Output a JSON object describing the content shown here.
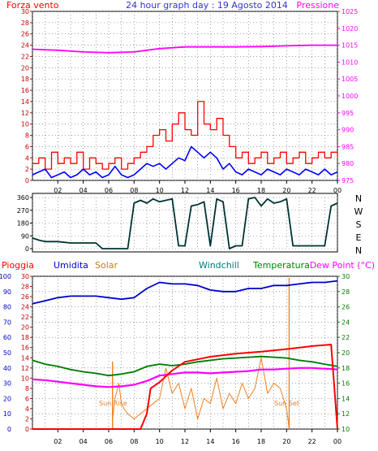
{
  "colors": {
    "wind": "#ff0000",
    "gust": "#ff0000",
    "avg": "#0000ff",
    "pressure": "#ff00ff",
    "dir": "#003333",
    "rain": "#ff0000",
    "hum": "#0000cc",
    "solar": "#f08020",
    "windchill": "#007777",
    "temp": "#008000",
    "dew": "#ff00ff",
    "grid": "#666666"
  },
  "header": {
    "wind_label": "Forza vento",
    "title": "24 hour graph day : 19 Agosto 2014",
    "pressure_label": "Pressione"
  },
  "legend": {
    "rain": "Pioggia",
    "hum": "Umidita",
    "solar": "Solar",
    "windchill": "Windchill",
    "temp": "Temperatura",
    "dew": "Dew Point (°C)"
  },
  "annotations": {
    "sunrise": "Sun Rise",
    "sunset": "Sun Set"
  },
  "chart_data": [
    {
      "type": "line",
      "title": "24 hour graph day : 19 Agosto 2014",
      "x_ticks": [
        "02",
        "04",
        "06",
        "08",
        "10",
        "12",
        "14",
        "16",
        "18",
        "20",
        "22",
        "00"
      ],
      "y_left": {
        "label": "Forza vento",
        "range": [
          0,
          30
        ],
        "ticks": [
          "30",
          "28",
          "26",
          "24",
          "22",
          "20",
          "18",
          "16",
          "14",
          "12",
          "10",
          "8",
          "6",
          "4",
          "2",
          "0"
        ]
      },
      "y_right": {
        "label": "Pressione",
        "range": [
          975,
          1025
        ],
        "ticks": [
          "1025",
          "1020",
          "1015",
          "1010",
          "1005",
          "1000",
          "995",
          "990",
          "985",
          "980",
          "975"
        ]
      },
      "series": [
        {
          "key": "gust",
          "x": [
            0,
            0.5,
            1,
            1.5,
            2,
            2.5,
            3,
            3.5,
            4,
            4.5,
            5,
            5.5,
            6,
            6.5,
            7,
            7.5,
            8,
            8.5,
            9,
            9.5,
            10,
            10.5,
            11,
            11.5,
            12,
            12.5,
            13,
            13.5,
            14,
            14.5,
            15,
            15.5,
            16,
            16.5,
            17,
            17.5,
            18,
            18.5,
            19,
            19.5,
            20,
            20.5,
            21,
            21.5,
            22,
            22.5,
            23,
            23.5,
            24
          ],
          "values": [
            3,
            4,
            2,
            5,
            3,
            4,
            3,
            5,
            2,
            4,
            3,
            2,
            3,
            4,
            2,
            3,
            4,
            5,
            6,
            8,
            9,
            7,
            10,
            12,
            9,
            8,
            14,
            10,
            9,
            11,
            8,
            6,
            4,
            5,
            3,
            4,
            5,
            3,
            4,
            5,
            3,
            4,
            5,
            3,
            4,
            5,
            4,
            5,
            4
          ]
        },
        {
          "key": "avg",
          "x": [
            0,
            1,
            1.5,
            2,
            2.5,
            3,
            3.5,
            4,
            4.5,
            5,
            5.5,
            6,
            6.5,
            7,
            7.5,
            8,
            8.5,
            9,
            9.5,
            10,
            10.5,
            11,
            11.5,
            12,
            12.5,
            13,
            13.5,
            14,
            14.5,
            15,
            15.5,
            16,
            16.5,
            17,
            17.5,
            18,
            18.5,
            19,
            19.5,
            20,
            20.5,
            21,
            21.5,
            22,
            22.5,
            23,
            23.5,
            24
          ],
          "values": [
            1,
            2,
            0.5,
            1,
            1.5,
            0.5,
            1,
            2,
            1,
            1.5,
            0.5,
            1,
            2.5,
            1,
            0.5,
            1,
            2,
            3,
            2.5,
            3,
            2,
            3,
            4,
            3.5,
            6,
            5,
            4,
            5,
            4,
            2,
            3,
            1.5,
            1,
            2,
            1.5,
            1,
            2,
            1.5,
            1,
            2,
            1.5,
            1,
            2,
            1.5,
            1,
            2,
            1,
            1.5
          ]
        },
        {
          "key": "pressure",
          "x": [
            0,
            2,
            4,
            6,
            8,
            10,
            12,
            14,
            16,
            18,
            20,
            22,
            24
          ],
          "values": [
            1013.8,
            1013.5,
            1013,
            1012.8,
            1013,
            1014,
            1014.5,
            1014.5,
            1014.5,
            1014.6,
            1014.8,
            1015,
            1015
          ]
        }
      ]
    },
    {
      "type": "line",
      "title": "",
      "y_ticks": [
        "360",
        "270",
        "180",
        "90",
        "0"
      ],
      "y_right_labels": [
        "N",
        "W",
        "S",
        "E",
        "N"
      ],
      "y_range": [
        0,
        360
      ],
      "series": [
        {
          "key": "dir",
          "x": [
            0,
            0.5,
            1,
            2,
            3,
            4,
            5,
            5.5,
            6,
            6.5,
            7,
            7.5,
            8,
            8.5,
            9,
            9.5,
            10,
            10.5,
            11,
            11.5,
            12,
            12.5,
            13,
            13.5,
            14,
            14.5,
            15,
            15.5,
            16,
            16.5,
            17,
            17.5,
            18,
            18.5,
            19,
            19.5,
            20,
            20.5,
            21,
            21.5,
            22,
            22.5,
            23,
            23.5,
            24
          ],
          "values": [
            75,
            60,
            50,
            50,
            40,
            40,
            40,
            0,
            0,
            0,
            0,
            0,
            320,
            340,
            320,
            350,
            330,
            340,
            350,
            20,
            20,
            300,
            310,
            330,
            20,
            350,
            330,
            0,
            20,
            20,
            350,
            360,
            300,
            350,
            320,
            330,
            350,
            20,
            20,
            20,
            20,
            20,
            20,
            300,
            320
          ]
        }
      ]
    },
    {
      "type": "line",
      "title": "",
      "x_ticks": [
        "02",
        "04",
        "06",
        "08",
        "10",
        "12",
        "14",
        "16",
        "18",
        "20",
        "22",
        "00"
      ],
      "y_axes": {
        "hum": {
          "ticks": [
            "100",
            "90",
            "80",
            "70",
            "60",
            "50",
            "40",
            "30",
            "20",
            "10",
            "0"
          ],
          "range": [
            0,
            100
          ]
        },
        "rain": {
          "ticks": [
            "30",
            "28",
            "26",
            "24",
            "22",
            "20",
            "18",
            "16",
            "14",
            "12",
            "10",
            "8",
            "6",
            "4",
            "2",
            "0"
          ],
          "range": [
            0,
            30
          ]
        },
        "temp": {
          "ticks": [
            "30",
            "28",
            "26",
            "24",
            "22",
            "20",
            "18",
            "16",
            "14",
            "12",
            "10"
          ],
          "range": [
            10,
            30
          ]
        }
      },
      "series": [
        {
          "key": "hum",
          "x": [
            0,
            1,
            2,
            3,
            4,
            5,
            6,
            7,
            8,
            9,
            10,
            11,
            12,
            13,
            14,
            15,
            16,
            17,
            18,
            19,
            20,
            21,
            22,
            23,
            24
          ],
          "values": [
            82,
            84,
            86,
            87,
            87,
            87,
            86,
            85,
            86,
            92,
            96,
            95,
            95,
            94,
            91,
            90,
            90,
            92,
            92,
            94,
            94,
            95,
            96,
            96,
            97
          ]
        },
        {
          "key": "temp",
          "x": [
            0,
            1,
            2,
            3,
            4,
            5,
            6,
            7,
            8,
            9,
            10,
            11,
            12,
            13,
            14,
            15,
            16,
            17,
            18,
            19,
            20,
            21,
            22,
            23,
            24
          ],
          "values": [
            19,
            18.5,
            18.2,
            17.8,
            17.5,
            17.3,
            17,
            17.2,
            17.5,
            18.2,
            18.5,
            18.3,
            18.5,
            18.8,
            19,
            19.2,
            19.3,
            19.4,
            19.5,
            19.4,
            19.3,
            19,
            18.8,
            18.5,
            18.2
          ]
        },
        {
          "key": "windchill",
          "x": [
            0,
            1,
            2,
            3,
            4,
            5,
            6,
            7,
            8,
            9,
            10,
            11,
            12,
            13,
            14,
            15,
            16,
            17,
            18,
            19,
            20,
            21,
            22,
            23,
            24
          ],
          "values": [
            19,
            18.5,
            18.2,
            17.8,
            17.5,
            17.3,
            17,
            17.2,
            17.5,
            18.2,
            18.5,
            18.3,
            18.5,
            18.8,
            19,
            19.2,
            19.3,
            19.4,
            19.5,
            19.4,
            19.3,
            19,
            18.8,
            18.5,
            18.2
          ]
        },
        {
          "key": "dew",
          "x": [
            0,
            1,
            2,
            3,
            4,
            5,
            6,
            7,
            8,
            9,
            10,
            11,
            12,
            13,
            14,
            15,
            16,
            17,
            18,
            19,
            20,
            21,
            22,
            23,
            24
          ],
          "values": [
            16.5,
            16.4,
            16.2,
            16,
            15.8,
            15.6,
            15.5,
            15.6,
            15.8,
            16.3,
            17,
            17.2,
            17.4,
            17.4,
            17.3,
            17.4,
            17.5,
            17.6,
            17.8,
            17.8,
            17.9,
            18,
            18,
            17.9,
            17.8
          ]
        },
        {
          "key": "solar",
          "x": [
            6.3,
            6.5,
            6.8,
            7,
            7.2,
            7.5,
            8,
            8.5,
            9,
            9.5,
            10,
            10.5,
            11,
            11.5,
            12,
            12.5,
            13,
            13.5,
            14,
            14.5,
            15,
            15.5,
            16,
            16.5,
            17,
            17.5,
            18,
            18.5,
            19,
            19.5,
            20,
            20.2
          ],
          "values": [
            2,
            6,
            9,
            5,
            4,
            3,
            2,
            3,
            4,
            5,
            6,
            12,
            7,
            9,
            4,
            8,
            2,
            6,
            5,
            10,
            4,
            7,
            5,
            9,
            6,
            8,
            14,
            7,
            9,
            8,
            4,
            0
          ]
        },
        {
          "key": "rain",
          "x": [
            0,
            8.5,
            9,
            9.3,
            10,
            11,
            12,
            14,
            16,
            18,
            20,
            22,
            23.5,
            24
          ],
          "values": [
            0,
            0,
            3,
            8,
            9.2,
            11.5,
            13.2,
            14.2,
            14.8,
            15.2,
            15.7,
            16.3,
            16.6,
            0
          ]
        }
      ]
    }
  ]
}
